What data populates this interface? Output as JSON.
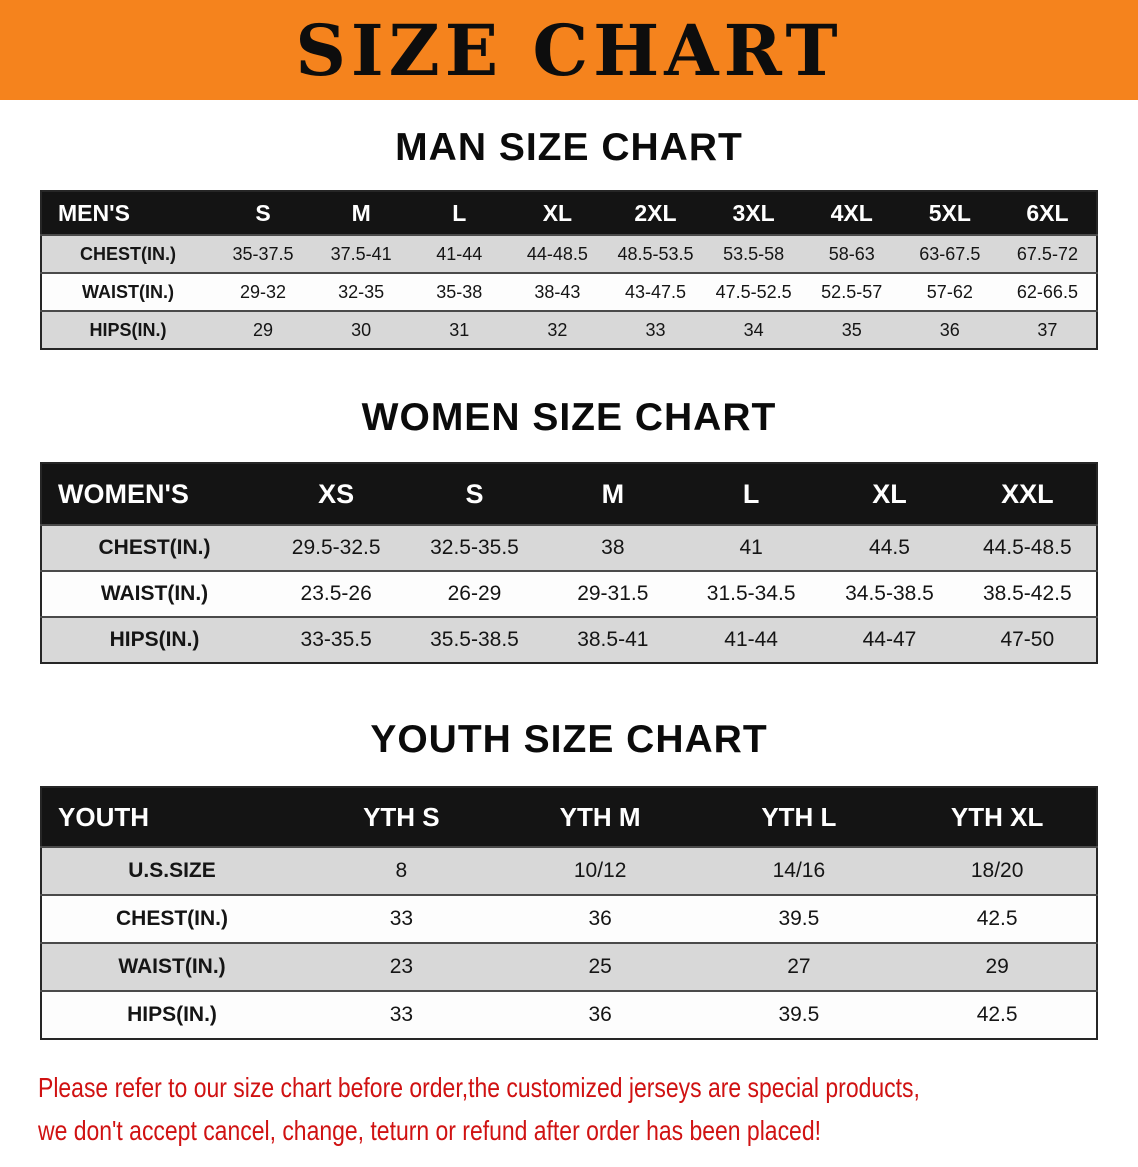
{
  "banner": {
    "title": "SIZE CHART",
    "bg_color": "#F5831D"
  },
  "chart_data": [
    {
      "type": "table",
      "title": "MAN SIZE CHART",
      "columns": [
        "MEN'S",
        "S",
        "M",
        "L",
        "XL",
        "2XL",
        "3XL",
        "4XL",
        "5XL",
        "6XL"
      ],
      "rows": [
        [
          "CHEST(IN.)",
          "35-37.5",
          "37.5-41",
          "41-44",
          "44-48.5",
          "48.5-53.5",
          "53.5-58",
          "58-63",
          "63-67.5",
          "67.5-72"
        ],
        [
          "WAIST(IN.)",
          "29-32",
          "32-35",
          "35-38",
          "38-43",
          "43-47.5",
          "47.5-52.5",
          "52.5-57",
          "57-62",
          "62-66.5"
        ],
        [
          "HIPS(IN.)",
          "29",
          "30",
          "31",
          "32",
          "33",
          "34",
          "35",
          "36",
          "37"
        ]
      ]
    },
    {
      "type": "table",
      "title": "WOMEN SIZE CHART",
      "columns": [
        "WOMEN'S",
        "XS",
        "S",
        "M",
        "L",
        "XL",
        "XXL"
      ],
      "rows": [
        [
          "CHEST(IN.)",
          "29.5-32.5",
          "32.5-35.5",
          "38",
          "41",
          "44.5",
          "44.5-48.5"
        ],
        [
          "WAIST(IN.)",
          "23.5-26",
          "26-29",
          "29-31.5",
          "31.5-34.5",
          "34.5-38.5",
          "38.5-42.5"
        ],
        [
          "HIPS(IN.)",
          "33-35.5",
          "35.5-38.5",
          "38.5-41",
          "41-44",
          "44-47",
          "47-50"
        ]
      ]
    },
    {
      "type": "table",
      "title": "YOUTH SIZE CHART",
      "columns": [
        "YOUTH",
        "YTH S",
        "YTH M",
        "YTH L",
        "YTH XL"
      ],
      "rows": [
        [
          "U.S.SIZE",
          "8",
          "10/12",
          "14/16",
          "18/20"
        ],
        [
          "CHEST(IN.)",
          "33",
          "36",
          "39.5",
          "42.5"
        ],
        [
          "WAIST(IN.)",
          "23",
          "25",
          "27",
          "29"
        ],
        [
          "HIPS(IN.)",
          "33",
          "36",
          "39.5",
          "42.5"
        ]
      ]
    }
  ],
  "disclaimer": {
    "line1": "Please refer to our size chart before order,the customized jerseys are special products,",
    "line2": "we don't accept cancel, change, teturn or refund after order has been placed!",
    "color": "#D01212"
  }
}
